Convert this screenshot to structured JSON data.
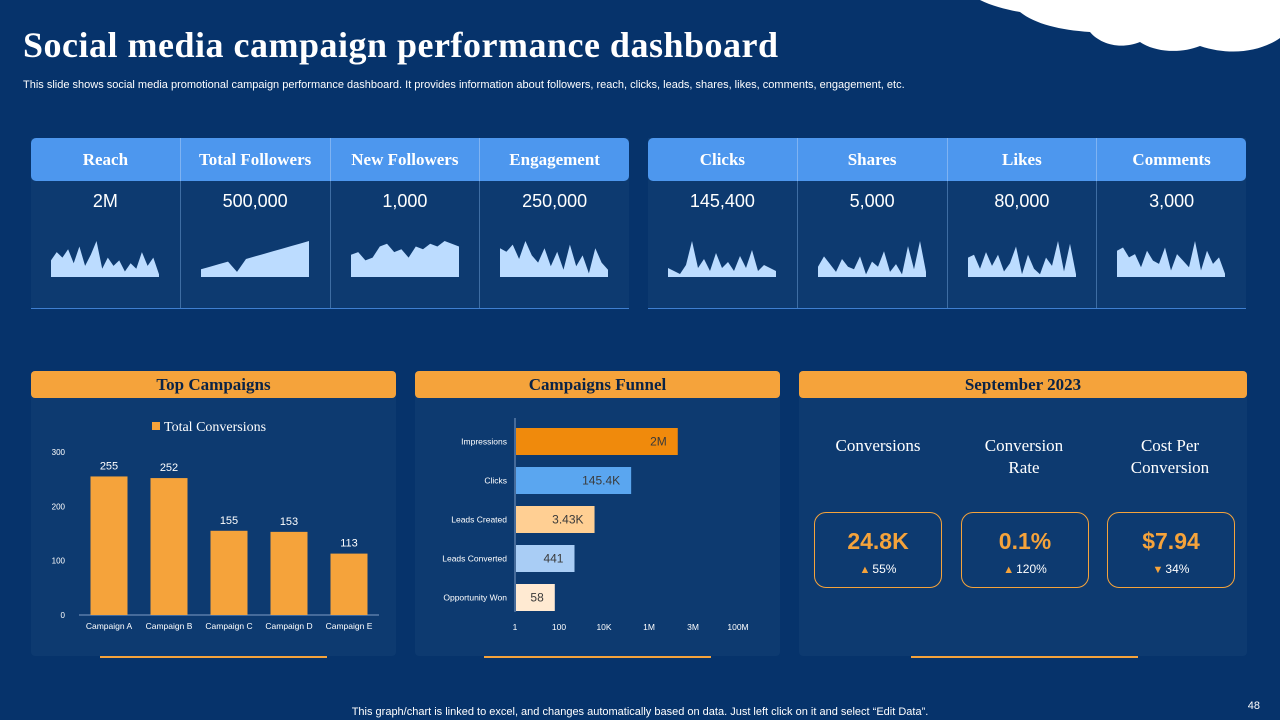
{
  "title": "Social media campaign performance dashboard",
  "subtitle": "This slide shows social media promotional campaign performance dashboard. It provides information about followers, reach, clicks, leads, shares, likes, comments, engagement, etc.",
  "footnote": "This graph/chart is linked to excel, and changes automatically based on data. Just left click on it and select “Edit Data”.",
  "page_number": "48",
  "colors": {
    "background": "#06336b",
    "panel": "#0d3a70",
    "kpi_header": "#4d97ee",
    "accent": "#f5a33b",
    "spark": "#bcdcff"
  },
  "kpis_left": [
    {
      "label": "Reach",
      "value": "2M",
      "spark": [
        6,
        9,
        7,
        10,
        5,
        11,
        4,
        8,
        13,
        3,
        7,
        4,
        6,
        2,
        5,
        3,
        9,
        4,
        7,
        1
      ]
    },
    {
      "label": "Total Followers",
      "value": "500,000",
      "spark": [
        3,
        4,
        5,
        6,
        2,
        7,
        8,
        9,
        10,
        11,
        12,
        13,
        14
      ]
    },
    {
      "label": "New Followers",
      "value": "1,000",
      "spark": [
        8,
        9,
        6,
        7,
        11,
        12,
        9,
        10,
        7,
        11,
        10,
        12,
        11,
        13,
        12,
        11
      ]
    },
    {
      "label": "Engagement",
      "value": "250,000",
      "spark": [
        8,
        7,
        9,
        5,
        10,
        6,
        4,
        8,
        3,
        7,
        2,
        9,
        3,
        6,
        1,
        8,
        4,
        2
      ]
    }
  ],
  "kpis_right": [
    {
      "label": "Clicks",
      "value": "145,400",
      "spark": [
        3,
        2,
        1,
        4,
        12,
        3,
        6,
        2,
        8,
        3,
        5,
        2,
        7,
        3,
        9,
        2,
        4,
        3,
        2
      ]
    },
    {
      "label": "Shares",
      "value": "5,000",
      "spark": [
        4,
        8,
        5,
        2,
        7,
        4,
        3,
        8,
        1,
        6,
        4,
        10,
        2,
        5,
        1,
        12,
        3,
        14,
        2
      ]
    },
    {
      "label": "Likes",
      "value": "80,000",
      "spark": [
        7,
        8,
        3,
        9,
        4,
        8,
        2,
        5,
        11,
        1,
        8,
        3,
        1,
        7,
        4,
        13,
        2,
        12,
        1
      ]
    },
    {
      "label": "Comments",
      "value": "3,000",
      "spark": [
        8,
        9,
        6,
        7,
        3,
        8,
        5,
        4,
        9,
        2,
        7,
        5,
        3,
        11,
        2,
        8,
        4,
        6,
        1
      ]
    }
  ],
  "top_campaigns": {
    "title": "Top Campaigns"
  },
  "funnel": {
    "title": "Campaigns Funnel"
  },
  "september": {
    "title": "September 2023",
    "stats": [
      {
        "label": "Conversions",
        "value": "24.8K",
        "delta": "55%",
        "direction": "up"
      },
      {
        "label": "Conversion Rate",
        "value": "0.1%",
        "delta": "120%",
        "direction": "up"
      },
      {
        "label": "Cost Per Conversion",
        "value": "$7.94",
        "delta": "34%",
        "direction": "down"
      }
    ]
  },
  "chart_data": [
    {
      "type": "bar",
      "title": "Top Campaigns",
      "legend": "Total Conversions",
      "legend_position": "top",
      "categories": [
        "Campaign A",
        "Campaign B",
        "Campaign C",
        "Campaign D",
        "Campaign E"
      ],
      "values": [
        255,
        252,
        155,
        153,
        113
      ],
      "ylim": [
        0,
        300
      ],
      "yticks": [
        0,
        100,
        200,
        300
      ],
      "color": "#f5a33b",
      "grid": false
    },
    {
      "type": "bar",
      "orientation": "horizontal",
      "title": "Campaigns Funnel",
      "scale": "log",
      "categories": [
        "Impressions",
        "Clicks",
        "Leads Created",
        "Leads Converted",
        "Opportunity Won"
      ],
      "values": [
        2000000,
        145400,
        3430,
        441,
        58
      ],
      "labels": [
        "2M",
        "145.4K",
        "3.43K",
        "441",
        "58"
      ],
      "bar_colors": [
        "#f08a0c",
        "#5aa6f0",
        "#ffcf93",
        "#a9cdf5",
        "#ffead2"
      ],
      "xticks": [
        1,
        100,
        10000,
        1000000,
        3000000,
        100000000
      ],
      "xtick_labels": [
        "1",
        "100",
        "10K",
        "1M",
        "3M",
        "100M"
      ],
      "grid": false
    }
  ]
}
